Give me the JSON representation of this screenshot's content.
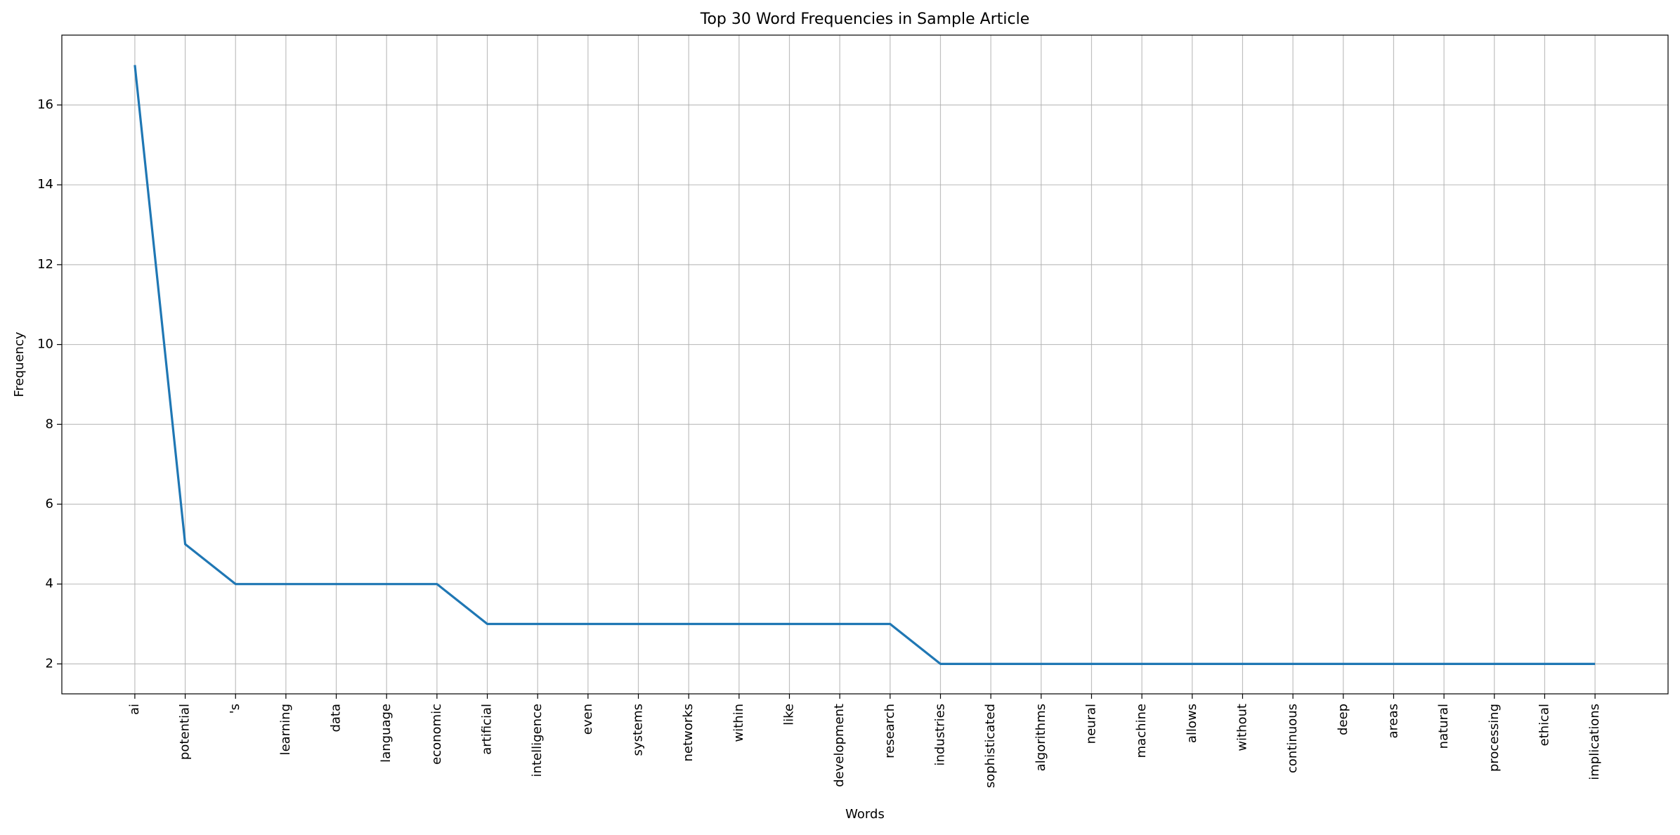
{
  "chart_data": {
    "type": "line",
    "title": "Top 30 Word Frequencies in Sample Article",
    "x_label": "Words",
    "y_label": "Frequency",
    "categories": [
      "ai",
      "potential",
      "'s",
      "learning",
      "data",
      "language",
      "economic",
      "artificial",
      "intelligence",
      "even",
      "systems",
      "networks",
      "within",
      "like",
      "development",
      "research",
      "industries",
      "sophisticated",
      "algorithms",
      "neural",
      "machine",
      "allows",
      "without",
      "continuous",
      "deep",
      "areas",
      "natural",
      "processing",
      "ethical",
      "implications"
    ],
    "values": [
      17,
      5,
      4,
      4,
      4,
      4,
      4,
      3,
      3,
      3,
      3,
      3,
      3,
      3,
      3,
      3,
      2,
      2,
      2,
      2,
      2,
      2,
      2,
      2,
      2,
      2,
      2,
      2,
      2,
      2
    ],
    "color": "#1f77b4",
    "ylim": [
      1.25,
      17.75
    ],
    "yticks": [
      2,
      4,
      6,
      8,
      10,
      12,
      14,
      16
    ],
    "grid": true
  }
}
